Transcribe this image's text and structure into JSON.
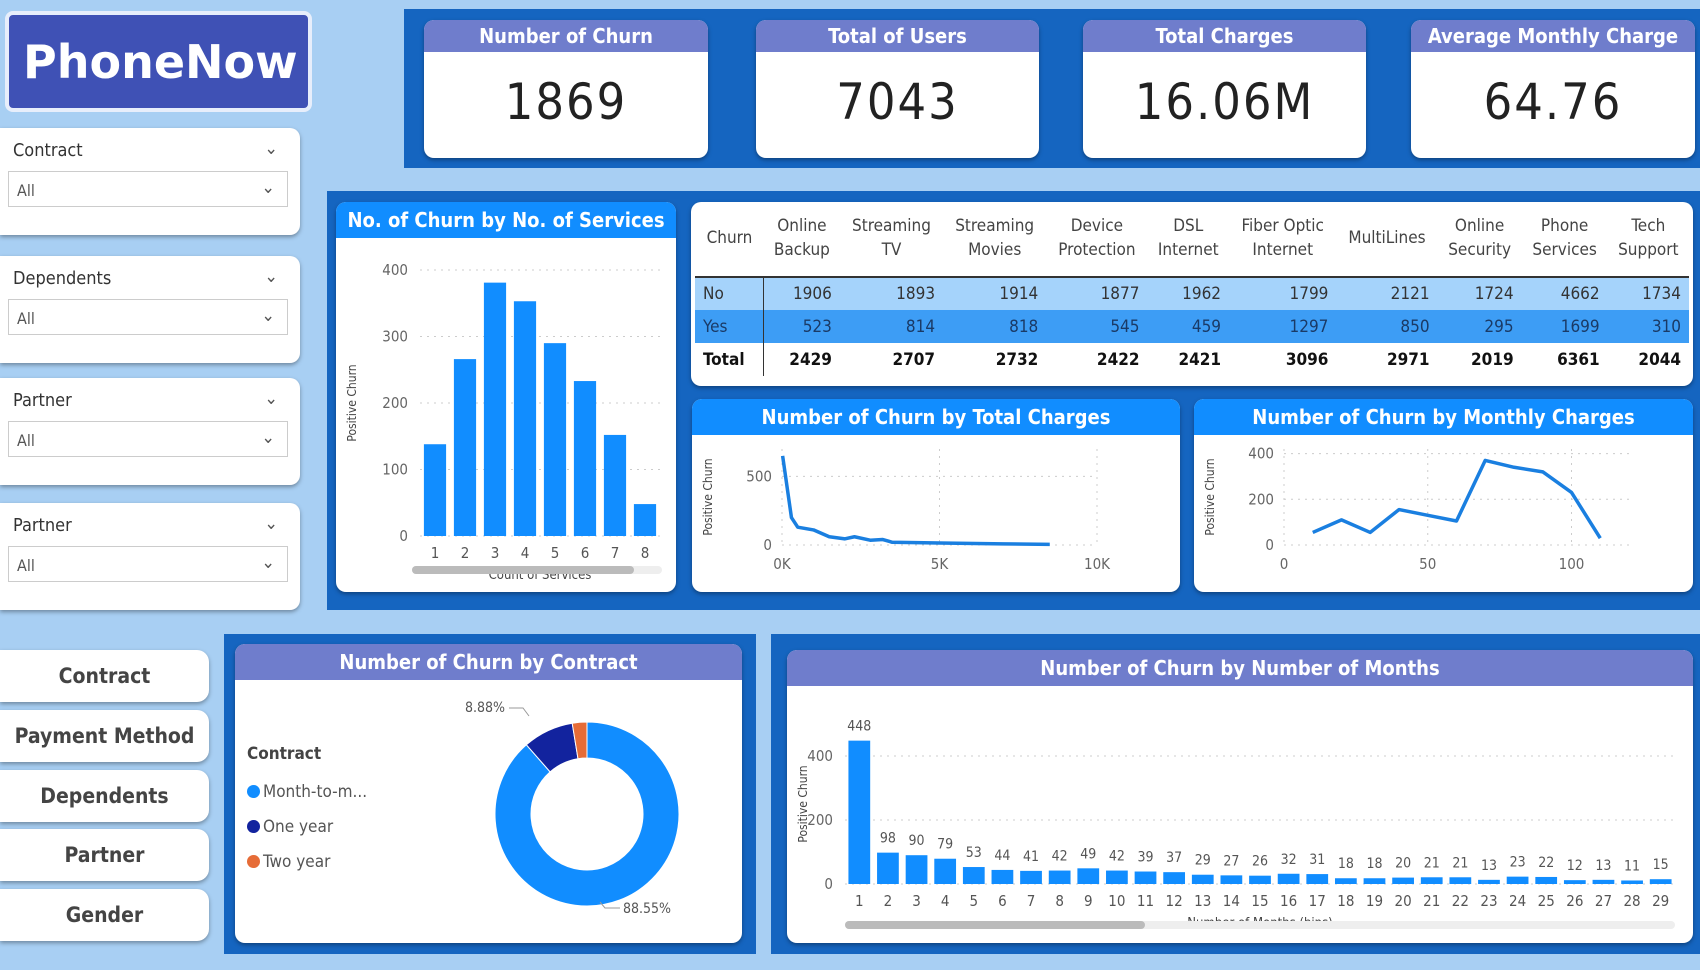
{
  "app": {
    "title": "PhoneNow"
  },
  "kpis": [
    {
      "label": "Number of Churn",
      "value": "1869"
    },
    {
      "label": "Total of Users",
      "value": "7043"
    },
    {
      "label": "Total Charges",
      "value": "16.06M"
    },
    {
      "label": "Average Monthly Charge",
      "value": "64.76"
    }
  ],
  "slicers": [
    {
      "label": "Contract",
      "value": "All"
    },
    {
      "label": "Dependents",
      "value": "All"
    },
    {
      "label": "Partner",
      "value": "All"
    },
    {
      "label": "Partner",
      "value": "All"
    }
  ],
  "nav_buttons": [
    "Contract",
    "Payment Method",
    "Dependents",
    "Partner",
    "Gender"
  ],
  "colors": {
    "bar": "#118dff",
    "navy": "#12239e",
    "orange": "#e66c37",
    "band": "#1565c0",
    "header_purple": "#6f7dcc",
    "header_blue": "#118dff"
  },
  "table": {
    "headers": [
      "Churn",
      "Online\nBackup",
      "Streaming\nTV",
      "Streaming\nMovies",
      "Device\nProtection",
      "DSL\nInternet",
      "Fiber Optic\nInternet",
      "MultiLines",
      "Online\nSecurity",
      "Phone\nServices",
      "Tech\nSupport"
    ],
    "rows": [
      [
        "No",
        "1906",
        "1893",
        "1914",
        "1877",
        "1962",
        "1799",
        "2121",
        "1724",
        "4662",
        "1734"
      ],
      [
        "Yes",
        "523",
        "814",
        "818",
        "545",
        "459",
        "1297",
        "850",
        "295",
        "1699",
        "310"
      ],
      [
        "Total",
        "2429",
        "2707",
        "2732",
        "2422",
        "2421",
        "3096",
        "2971",
        "2019",
        "6361",
        "2044"
      ]
    ]
  },
  "chart_data": [
    {
      "type": "bar",
      "title": "No. of Churn by No. of Services",
      "xlabel": "Count of Services",
      "ylabel": "Positive Churn",
      "categories": [
        "1",
        "2",
        "3",
        "4",
        "5",
        "6",
        "7",
        "8"
      ],
      "values": [
        138,
        266,
        381,
        353,
        290,
        233,
        152,
        48
      ],
      "ylim": [
        0,
        400
      ],
      "yticks": [
        "0",
        "100",
        "200",
        "300",
        "400"
      ],
      "grid": true
    },
    {
      "type": "line",
      "title": "Number of Churn by Total Charges",
      "xlabel": "",
      "ylabel": "Positive Churn",
      "x": [
        20,
        300,
        500,
        1000,
        1500,
        2000,
        2300,
        2800,
        3200,
        3500,
        5000,
        7000,
        8500
      ],
      "y": [
        650,
        200,
        130,
        110,
        60,
        45,
        60,
        35,
        40,
        20,
        15,
        8,
        5
      ],
      "xlim": [
        0,
        10000
      ],
      "ylim": [
        0,
        700
      ],
      "xticks": [
        "0K",
        "5K",
        "10K"
      ],
      "yticks": [
        "0",
        "500"
      ],
      "grid": true
    },
    {
      "type": "line",
      "title": "Number of Churn by Monthly Charges",
      "xlabel": "",
      "ylabel": "Positive Churn",
      "x": [
        10,
        20,
        30,
        40,
        50,
        60,
        70,
        80,
        90,
        100,
        110
      ],
      "y": [
        55,
        110,
        55,
        155,
        130,
        105,
        370,
        340,
        320,
        230,
        30
      ],
      "xlim": [
        0,
        120
      ],
      "ylim": [
        0,
        420
      ],
      "xticks": [
        "0",
        "50",
        "100"
      ],
      "yticks": [
        "0",
        "200",
        "400"
      ],
      "grid": true
    },
    {
      "type": "pie",
      "title": "Number of Churn by Contract",
      "legend_title": "Contract",
      "legend": "left",
      "categories": [
        "Month-to-m...",
        "One year",
        "Two year"
      ],
      "values": [
        88.55,
        8.88,
        2.57
      ],
      "labels": [
        "88.55%",
        "8.88%",
        ""
      ]
    },
    {
      "type": "bar",
      "title": "Number of Churn by Number of Months",
      "xlabel": "Number of Months (bins)",
      "ylabel": "Positive Churn",
      "categories": [
        "1",
        "2",
        "3",
        "4",
        "5",
        "6",
        "7",
        "8",
        "9",
        "10",
        "11",
        "12",
        "13",
        "14",
        "15",
        "16",
        "17",
        "18",
        "19",
        "20",
        "21",
        "22",
        "23",
        "24",
        "25",
        "26",
        "27",
        "28",
        "29"
      ],
      "values": [
        448,
        98,
        90,
        79,
        53,
        44,
        41,
        42,
        49,
        42,
        39,
        37,
        29,
        27,
        26,
        32,
        31,
        18,
        18,
        20,
        21,
        21,
        13,
        23,
        22,
        12,
        13,
        11,
        15
      ],
      "ylim": [
        0,
        500
      ],
      "yticks": [
        "0",
        "200",
        "400"
      ],
      "grid": true
    }
  ]
}
